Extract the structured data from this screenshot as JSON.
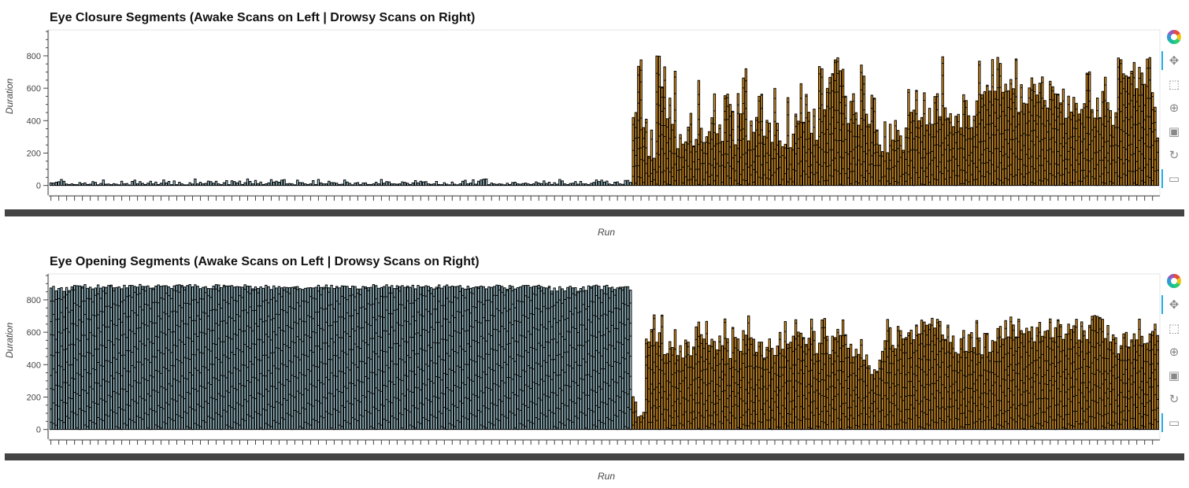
{
  "toolbar": {
    "tools": [
      {
        "name": "bokeh-logo",
        "glyph": ""
      },
      {
        "name": "pan-tool",
        "glyph": "✥"
      },
      {
        "name": "box-zoom-tool",
        "glyph": "⬚"
      },
      {
        "name": "wheel-zoom-tool",
        "glyph": "⊕"
      },
      {
        "name": "save-tool",
        "glyph": "▣"
      },
      {
        "name": "reset-tool",
        "glyph": "↻"
      },
      {
        "name": "hover-tool",
        "glyph": "▭"
      }
    ]
  },
  "colors": {
    "awake": "#a9d3df",
    "drowsy": "#f0a020",
    "outline": "#000000",
    "axis": "#444444"
  },
  "chart_data": [
    {
      "type": "bar",
      "title": "Eye Closure Segments (Awake Scans on Left | Drowsy Scans on Right)",
      "xlabel": "Run",
      "ylabel": "Duration",
      "ylim": [
        -60,
        960
      ],
      "yticks": [
        0,
        200,
        400,
        600,
        800
      ],
      "grid": false,
      "series": [
        {
          "group": "awake",
          "num_bars": 222,
          "values_max": [
            16,
            15,
            20,
            23,
            37,
            26,
            9,
            6,
            10,
            6,
            5,
            18,
            11,
            16,
            6,
            8,
            24,
            19,
            4,
            12,
            34,
            8,
            9,
            5,
            11,
            8,
            4,
            26,
            10,
            12,
            3,
            25,
            33,
            10,
            24,
            13,
            6,
            14,
            26,
            10,
            21,
            6,
            14,
            34,
            16,
            25,
            5,
            28,
            5,
            20,
            10,
            4,
            4,
            17,
            9,
            40,
            10,
            20,
            10,
            13,
            27,
            24,
            14,
            26,
            10,
            5,
            17,
            30,
            5,
            29,
            24,
            16,
            27,
            6,
            17,
            40,
            25,
            10,
            31,
            11,
            21,
            6,
            10,
            16,
            36,
            21,
            26,
            20,
            33,
            36,
            10,
            12,
            10,
            4,
            33,
            18,
            17,
            10,
            6,
            10,
            30,
            6,
            37,
            16,
            10,
            10,
            26,
            18,
            17,
            14,
            6,
            8,
            34,
            21,
            13,
            4,
            15,
            18,
            5,
            15,
            16,
            6,
            6,
            10,
            20,
            10,
            37,
            14,
            24,
            22,
            10,
            10,
            8,
            10,
            22,
            19,
            14,
            6,
            16,
            30,
            16,
            26,
            22,
            24,
            10,
            7,
            10,
            25,
            6,
            5,
            17,
            8,
            4,
            21,
            8,
            4,
            10,
            26,
            32,
            10,
            15,
            35,
            8,
            26,
            34,
            39,
            40,
            5,
            15,
            10,
            7,
            10,
            8,
            4,
            14,
            6,
            18,
            20,
            10,
            8,
            12,
            15,
            10,
            6,
            10,
            22,
            15,
            11,
            28,
            12,
            20,
            6,
            17,
            8,
            37,
            28,
            10,
            5,
            12,
            14,
            24,
            8,
            25,
            10,
            10,
            5,
            13,
            19,
            34,
            24,
            33,
            21,
            27,
            9,
            5,
            20,
            22,
            10,
            7,
            31,
            31,
            19
          ]
        },
        {
          "group": "drowsy",
          "num_bars": 201,
          "values_max": [
            419,
            450,
            735,
            775,
            357,
            409,
            180,
            342,
            168,
            799,
            798,
            608,
            732,
            412,
            539,
            377,
            705,
            227,
            314,
            255,
            269,
            360,
            445,
            244,
            284,
            648,
            353,
            265,
            301,
            332,
            418,
            565,
            319,
            374,
            272,
            554,
            564,
            500,
            458,
            251,
            567,
            442,
            663,
            720,
            275,
            398,
            328,
            420,
            550,
            563,
            304,
            402,
            385,
            266,
            599,
            384,
            275,
            239,
            254,
            542,
            233,
            317,
            441,
            397,
            628,
            390,
            562,
            452,
            322,
            471,
            279,
            734,
            720,
            467,
            599,
            667,
            690,
            775,
            788,
            708,
            717,
            551,
            382,
            519,
            566,
            449,
            372,
            743,
            675,
            440,
            377,
            557,
            539,
            343,
            250,
            209,
            393,
            202,
            378,
            280,
            401,
            340,
            306,
            217,
            355,
            592,
            451,
            465,
            587,
            399,
            419,
            572,
            374,
            476,
            377,
            549,
            566,
            424,
            794,
            479,
            416,
            443,
            363,
            427,
            439,
            356,
            560,
            524,
            430,
            357,
            428,
            522,
            767,
            560,
            579,
            619,
            582,
            777,
            581,
            790,
            753,
            575,
            625,
            584,
            654,
            597,
            781,
            451,
            622,
            508,
            503,
            602,
            664,
            624,
            558,
            631,
            670,
            524,
            478,
            643,
            609,
            565,
            564,
            510,
            595,
            415,
            551,
            453,
            544,
            507,
            441,
            469,
            505,
            693,
            701,
            468,
            416,
            540,
            419,
            580,
            668,
            511,
            462,
            371,
            449,
            787,
            776,
            689,
            677,
            669,
            705,
            759,
            597,
            729,
            694,
            624,
            780,
            789,
            573,
            483,
            293
          ]
        }
      ]
    },
    {
      "type": "bar",
      "title": "Eye Opening Segments (Awake Scans on Left | Drowsy Scans on Right)",
      "xlabel": "Run",
      "ylabel": "Duration",
      "ylim": [
        -60,
        960
      ],
      "yticks": [
        0,
        200,
        400,
        600,
        800
      ],
      "grid": false,
      "series": [
        {
          "group": "awake",
          "num_bars": 222,
          "values_max": [
            873,
            883,
            855,
            870,
            875,
            852,
            876,
            857,
            880,
            889,
            887,
            886,
            882,
            894,
            871,
            878,
            867,
            873,
            892,
            872,
            880,
            877,
            889,
            891,
            874,
            876,
            880,
            868,
            890,
            874,
            889,
            889,
            883,
            878,
            895,
            883,
            882,
            886,
            872,
            873,
            885,
            892,
            884,
            887,
            887,
            880,
            870,
            886,
            891,
            893,
            889,
            879,
            888,
            894,
            880,
            893,
            884,
            869,
            877,
            881,
            870,
            869,
            885,
            894,
            892,
            875,
            890,
            885,
            886,
            888,
            879,
            882,
            880,
            878,
            893,
            885,
            884,
            868,
            880,
            870,
            880,
            871,
            890,
            881,
            864,
            886,
            873,
            882,
            874,
            878,
            876,
            875,
            877,
            880,
            882,
            869,
            864,
            871,
            874,
            875,
            873,
            877,
            890,
            876,
            877,
            892,
            874,
            890,
            870,
            883,
            874,
            886,
            885,
            883,
            870,
            885,
            882,
            867,
            867,
            883,
            880,
            875,
            877,
            894,
            888,
            871,
            876,
            882,
            893,
            878,
            888,
            870,
            887,
            881,
            888,
            877,
            885,
            877,
            890,
            868,
            889,
            879,
            880,
            887,
            883,
            875,
            867,
            878,
            892,
            872,
            883,
            892,
            880,
            885,
            881,
            883,
            888,
            872,
            866,
            884,
            871,
            875,
            880,
            880,
            885,
            881,
            868,
            880,
            877,
            882,
            891,
            889,
            883,
            874,
            865,
            888,
            883,
            867,
            875,
            880,
            888,
            889,
            889,
            877,
            883,
            885,
            890,
            882,
            876,
            873,
            884,
            854,
            873,
            854,
            881,
            868,
            855,
            876,
            884,
            874,
            875,
            853,
            870,
            880,
            858,
            886,
            881,
            887,
            891,
            884,
            863,
            885,
            890,
            874,
            878,
            864,
            874,
            878,
            878,
            881,
            881,
            860,
            872
          ]
        },
        {
          "group": "drowsy",
          "num_bars": 201,
          "values_max": [
            202,
            169,
            78,
            85,
            106,
            558,
            540,
            617,
            707,
            538,
            597,
            706,
            462,
            468,
            542,
            506,
            616,
            456,
            517,
            441,
            552,
            539,
            455,
            509,
            633,
            663,
            585,
            558,
            667,
            519,
            557,
            543,
            491,
            577,
            517,
            682,
            560,
            438,
            630,
            568,
            559,
            482,
            610,
            582,
            701,
            566,
            557,
            476,
            539,
            539,
            441,
            507,
            559,
            500,
            457,
            515,
            599,
            495,
            666,
            527,
            538,
            576,
            677,
            601,
            594,
            567,
            525,
            563,
            681,
            605,
            468,
            533,
            676,
            685,
            575,
            462,
            576,
            567,
            618,
            580,
            676,
            585,
            501,
            526,
            448,
            495,
            463,
            555,
            428,
            460,
            393,
            339,
            369,
            359,
            428,
            482,
            548,
            679,
            628,
            519,
            498,
            636,
            610,
            559,
            567,
            597,
            613,
            554,
            645,
            589,
            675,
            663,
            643,
            650,
            686,
            626,
            680,
            667,
            583,
            556,
            644,
            537,
            577,
            475,
            465,
            560,
            611,
            482,
            585,
            598,
            505,
            672,
            565,
            461,
            593,
            593,
            476,
            549,
            541,
            623,
            636,
            558,
            672,
            571,
            694,
            645,
            571,
            681,
            610,
            591,
            625,
            604,
            633,
            541,
            629,
            661,
            575,
            605,
            611,
            682,
            566,
            628,
            677,
            647,
            556,
            589,
            650,
            617,
            640,
            680,
            552,
            664,
            609,
            555,
            643,
            699,
            703,
            698,
            691,
            680,
            561,
            642,
            540,
            584,
            566,
            467,
            517,
            590,
            599,
            509,
            553,
            590,
            553,
            681,
            575,
            529,
            533,
            590,
            605,
            650,
            580,
            662
          ]
        }
      ]
    }
  ]
}
